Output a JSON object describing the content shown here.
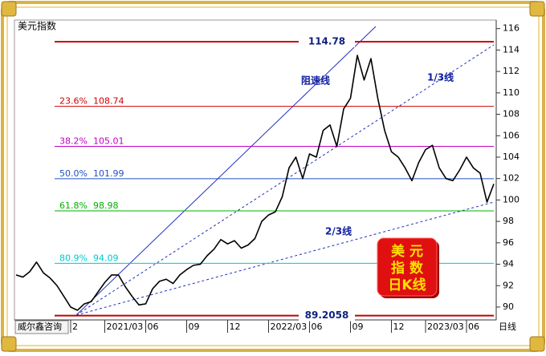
{
  "chart_data": {
    "type": "line",
    "title": "美元指数",
    "source": "威尔鑫咨询",
    "period_label": "日线",
    "annotations": [
      "阻速线",
      "1/3线",
      "2/3线"
    ],
    "badge": [
      "美 元",
      "指 数",
      "日K线"
    ],
    "categories": [
      null,
      null,
      null,
      null,
      null,
      null,
      null,
      null,
      "2",
      null,
      null,
      null,
      null,
      "2021/03",
      null,
      null,
      null,
      null,
      null,
      "06",
      null,
      null,
      null,
      null,
      null,
      "09",
      null,
      null,
      null,
      null,
      null,
      "12",
      null,
      null,
      null,
      null,
      null,
      "2022/03",
      null,
      null,
      null,
      null,
      null,
      "06",
      null,
      null,
      null,
      null,
      null,
      "09",
      null,
      null,
      null,
      null,
      null,
      "12",
      null,
      null,
      null,
      null,
      "2023/03",
      null,
      null,
      null,
      null,
      null,
      "06",
      null,
      null,
      null,
      null
    ],
    "series": [
      {
        "color": "#000000",
        "values": [
          93.0,
          92.8,
          93.3,
          94.2,
          93.2,
          92.7,
          92.0,
          91.0,
          90.0,
          89.7,
          90.3,
          90.5,
          91.4,
          92.3,
          93.0,
          93.0,
          91.9,
          91.0,
          90.2,
          90.3,
          91.7,
          92.4,
          92.6,
          92.2,
          93.0,
          93.5,
          93.9,
          94.0,
          94.8,
          95.4,
          96.3,
          95.9,
          96.2,
          95.5,
          95.8,
          96.4,
          98.0,
          98.6,
          98.9,
          100.3,
          103.0,
          104.0,
          102.0,
          104.3,
          104.0,
          106.5,
          107.0,
          105.0,
          108.5,
          109.5,
          113.5,
          111.2,
          113.2,
          109.5,
          106.5,
          104.5,
          104.0,
          103.0,
          101.8,
          103.5,
          104.7,
          105.1,
          103.0,
          102.0,
          101.8,
          102.8,
          104.0,
          103.0,
          102.5,
          99.8,
          101.5
        ]
      }
    ],
    "levels": [
      {
        "value": 114.78,
        "color": "#d00000"
      },
      {
        "ratio": "23.6%",
        "value": 108.74,
        "color": "#d00000"
      },
      {
        "ratio": "38.2%",
        "value": 105.01,
        "color": "#c000c0"
      },
      {
        "ratio": "50.0%",
        "value": 101.99,
        "color": "#2050c0"
      },
      {
        "ratio": "61.8%",
        "value": 98.98,
        "color": "#00b000"
      },
      {
        "ratio": "80.9%",
        "value": 94.09,
        "color": "#00c8c8"
      },
      {
        "value": 89.2058,
        "color": "#c00000"
      }
    ],
    "ylim": [
      88.8,
      116.8
    ],
    "yticks": [
      90,
      92,
      94,
      96,
      98,
      100,
      102,
      104,
      106,
      108,
      110,
      112,
      114,
      116
    ]
  }
}
